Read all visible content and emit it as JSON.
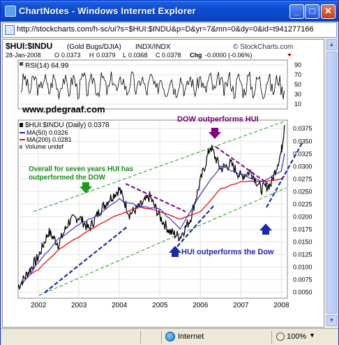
{
  "window": {
    "title": "ChartNotes - Windows Internet Explorer",
    "min": "_",
    "max": "□",
    "close": "✕"
  },
  "address": {
    "url": "http://stockcharts.com/h-sc/ui?s=$HUI:$INDU&p=D&yr=7&mn=0&dy=0&id=t941277166"
  },
  "status": {
    "zone": "Internet",
    "zoom": "100%",
    "zoom_caret": "▼"
  },
  "chart_header": {
    "symbol": "$HUI:$INDU",
    "name": "(Gold Bugs/DJIA)",
    "exchange": "INDX/INDX",
    "logo": "© StockCharts.com",
    "date": "28-Jan-2008",
    "open_label": "O",
    "open": "0.0373",
    "high_label": "H",
    "high": "0.0379",
    "low_label": "L",
    "low": "0.0368",
    "close_label": "C",
    "close": "0.0378",
    "chg_label": "Chg",
    "chg": "-0.0000 (-0.06%)"
  },
  "rsi": {
    "label": "RSI(14) 64.99",
    "levels": [
      "90",
      "70",
      "50",
      "30",
      "10"
    ],
    "watermark": "www.pdegraaf.com"
  },
  "legend": {
    "main": "$HUI:$INDU (Daily) 0.0378",
    "ma50": "MA(50) 0.0326",
    "ma200": "MA(200) 0.0281",
    "volume": "Volume undef"
  },
  "annotations": {
    "dow": "DOW outperforms HUI",
    "overall_1": "Overall for seven years HUI has",
    "overall_2": "outperformed the DOW",
    "hui": "HUI outperforms the Dow"
  },
  "colors": {
    "price": "#000000",
    "ma50": "#2020c0",
    "ma200": "#e01010",
    "green_channel": "#1a9a1a",
    "purple": "#800080",
    "blue_trend": "#1a2aaa"
  },
  "chart_data": {
    "type": "line",
    "series": [
      {
        "name": "$HUI:$INDU",
        "x": [
          2001.5,
          2001.75,
          2002.0,
          2002.25,
          2002.5,
          2002.75,
          2003.0,
          2003.25,
          2003.5,
          2003.75,
          2004.0,
          2004.25,
          2004.5,
          2004.75,
          2005.0,
          2005.25,
          2005.5,
          2005.75,
          2006.0,
          2006.25,
          2006.5,
          2006.75,
          2007.0,
          2007.25,
          2007.5,
          2007.75,
          2008.0,
          2008.08
        ],
        "values": [
          0.006,
          0.009,
          0.012,
          0.017,
          0.0145,
          0.019,
          0.02,
          0.0175,
          0.021,
          0.0235,
          0.0255,
          0.0205,
          0.022,
          0.024,
          0.02,
          0.017,
          0.016,
          0.0195,
          0.027,
          0.034,
          0.0295,
          0.0305,
          0.028,
          0.029,
          0.0255,
          0.0265,
          0.033,
          0.0378
        ]
      },
      {
        "name": "MA(50)",
        "x": [
          2001.6,
          2002.0,
          2002.5,
          2003.0,
          2003.5,
          2004.0,
          2004.5,
          2005.0,
          2005.5,
          2006.0,
          2006.5,
          2007.0,
          2007.5,
          2008.0,
          2008.08
        ],
        "values": [
          0.0065,
          0.011,
          0.0155,
          0.0185,
          0.0205,
          0.0235,
          0.022,
          0.0215,
          0.0175,
          0.0245,
          0.03,
          0.0285,
          0.027,
          0.029,
          0.0326
        ]
      },
      {
        "name": "MA(200)",
        "x": [
          2001.8,
          2002.0,
          2002.5,
          2003.0,
          2003.5,
          2004.0,
          2004.5,
          2005.0,
          2005.5,
          2006.0,
          2006.5,
          2007.0,
          2007.5,
          2008.0,
          2008.08
        ],
        "values": [
          0.0085,
          0.0095,
          0.0135,
          0.016,
          0.0185,
          0.0205,
          0.022,
          0.021,
          0.0195,
          0.021,
          0.0255,
          0.027,
          0.027,
          0.0275,
          0.0281
        ]
      }
    ],
    "xlabel": "",
    "ylabel": "",
    "xticks": [
      "2002",
      "2003",
      "2004",
      "2005",
      "2006",
      "2007",
      "2008"
    ],
    "yticks": [
      "0.0375",
      "0.0350",
      "0.0325",
      "0.0300",
      "0.0275",
      "0.0250",
      "0.0225",
      "0.0200",
      "0.0175",
      "0.0150",
      "0.0125",
      "0.0100",
      "0.0075",
      "0.0050"
    ],
    "xlim": [
      2001.5,
      2008.15
    ],
    "ylim": [
      0.0038,
      0.0392
    ],
    "rsi_ylim": [
      0,
      100
    ],
    "scale": "linear",
    "grid": true
  }
}
